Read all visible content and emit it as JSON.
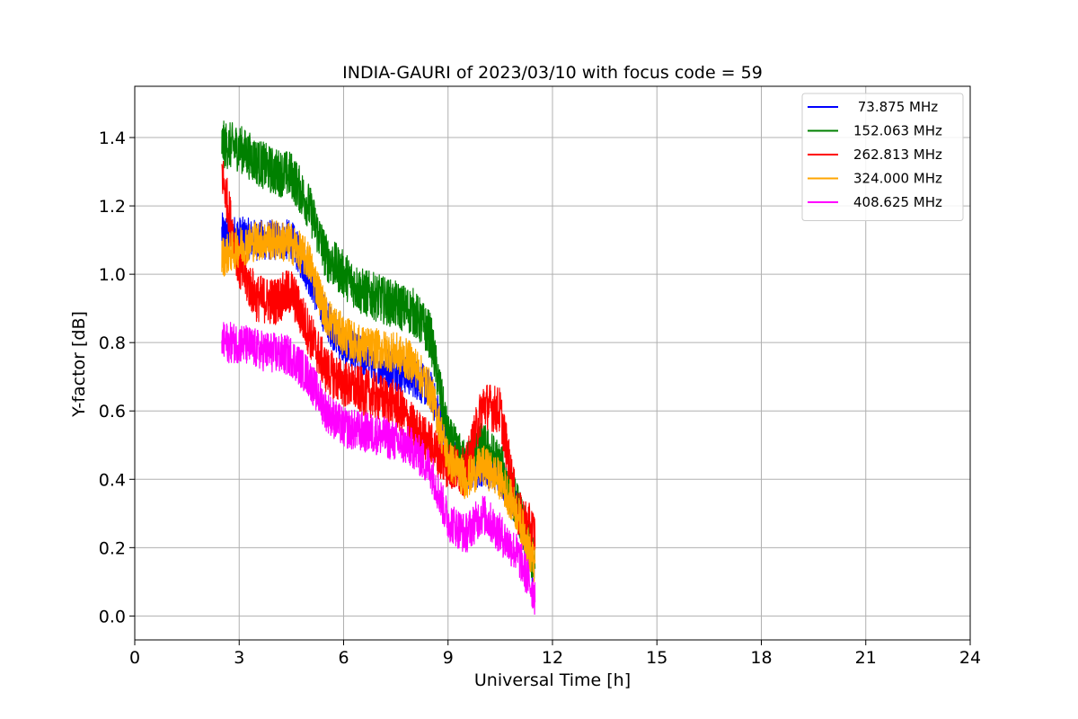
{
  "chart_data": {
    "type": "line",
    "title": "INDIA-GAURI of 2023/03/10 with focus code = 59",
    "xlabel": "Universal Time [h]",
    "ylabel": "Y-factor [dB]",
    "xlim": [
      0,
      24
    ],
    "ylim": [
      -0.07,
      1.55
    ],
    "xticks": [
      0,
      3,
      6,
      9,
      12,
      15,
      18,
      21,
      24
    ],
    "yticks": [
      0.0,
      0.2,
      0.4,
      0.6,
      0.8,
      1.0,
      1.2,
      1.4
    ],
    "xtick_labels": [
      "0",
      "3",
      "6",
      "9",
      "12",
      "15",
      "18",
      "21",
      "24"
    ],
    "ytick_labels": [
      "0.0",
      "0.2",
      "0.4",
      "0.6",
      "0.8",
      "1.0",
      "1.2",
      "1.4"
    ],
    "grid": true,
    "legend_position": "top-right",
    "series": [
      {
        "name": " 73.875 MHz",
        "color": "#0000ff",
        "x": [
          2.5,
          3.0,
          3.5,
          4.0,
          4.5,
          5.0,
          5.5,
          6.0,
          6.5,
          7.0,
          7.5,
          8.0,
          8.5,
          9.0,
          9.5,
          10.0,
          10.5,
          11.0,
          11.5
        ],
        "y": [
          1.12,
          1.11,
          1.1,
          1.1,
          1.1,
          1.0,
          0.87,
          0.79,
          0.76,
          0.74,
          0.72,
          0.7,
          0.66,
          0.5,
          0.42,
          0.44,
          0.42,
          0.3,
          0.12
        ],
        "noise": 0.06
      },
      {
        "name": "152.063 MHz",
        "color": "#008000",
        "x": [
          2.5,
          3.0,
          3.5,
          4.0,
          4.5,
          5.0,
          5.5,
          6.0,
          6.5,
          7.0,
          7.5,
          8.0,
          8.5,
          9.0,
          9.5,
          10.0,
          10.5,
          11.0,
          11.5
        ],
        "y": [
          1.38,
          1.37,
          1.33,
          1.3,
          1.29,
          1.2,
          1.05,
          1.0,
          0.95,
          0.93,
          0.91,
          0.89,
          0.82,
          0.52,
          0.44,
          0.5,
          0.44,
          0.32,
          0.14
        ],
        "noise": 0.07
      },
      {
        "name": "262.813 MHz",
        "color": "#ff0000",
        "x": [
          2.5,
          3.0,
          3.5,
          4.0,
          4.5,
          5.0,
          5.5,
          6.0,
          6.5,
          7.0,
          7.5,
          8.0,
          8.5,
          9.0,
          9.5,
          10.0,
          10.5,
          11.0,
          11.5
        ],
        "y": [
          1.3,
          1.02,
          0.93,
          0.92,
          0.95,
          0.83,
          0.72,
          0.68,
          0.66,
          0.64,
          0.62,
          0.55,
          0.5,
          0.44,
          0.42,
          0.62,
          0.6,
          0.3,
          0.24
        ],
        "noise": 0.07
      },
      {
        "name": "324.000 MHz",
        "color": "#ffa500",
        "x": [
          2.5,
          3.0,
          3.5,
          4.0,
          4.5,
          5.0,
          5.5,
          6.0,
          6.5,
          7.0,
          7.5,
          8.0,
          8.5,
          9.0,
          9.5,
          10.0,
          10.5,
          11.0,
          11.5
        ],
        "y": [
          1.05,
          1.08,
          1.1,
          1.1,
          1.09,
          1.04,
          0.88,
          0.82,
          0.79,
          0.78,
          0.77,
          0.74,
          0.66,
          0.46,
          0.4,
          0.44,
          0.4,
          0.3,
          0.14
        ],
        "noise": 0.06
      },
      {
        "name": "408.625 MHz",
        "color": "#ff00ff",
        "x": [
          2.5,
          3.0,
          3.5,
          4.0,
          4.5,
          5.0,
          5.5,
          6.0,
          6.5,
          7.0,
          7.5,
          8.0,
          8.5,
          9.0,
          9.5,
          10.0,
          10.5,
          11.0,
          11.5
        ],
        "y": [
          0.8,
          0.8,
          0.78,
          0.77,
          0.76,
          0.7,
          0.6,
          0.55,
          0.54,
          0.53,
          0.51,
          0.49,
          0.43,
          0.28,
          0.24,
          0.3,
          0.24,
          0.18,
          0.06
        ],
        "noise": 0.06
      }
    ]
  }
}
